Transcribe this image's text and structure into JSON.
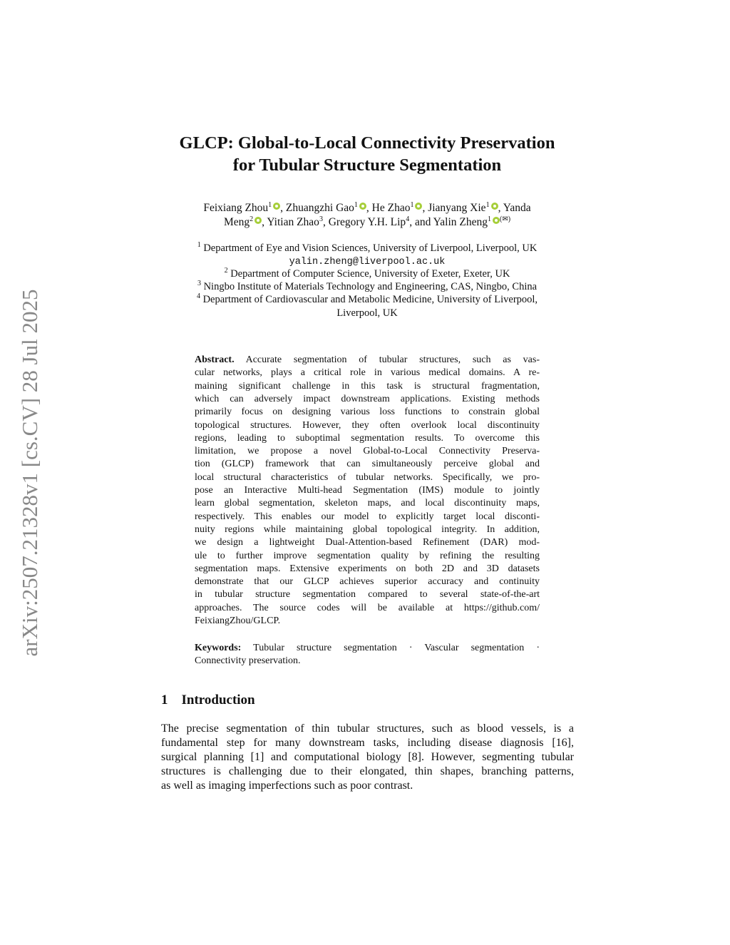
{
  "sidebar_stamp": "arXiv:2507.21328v1  [cs.CV]  28 Jul 2025",
  "title": [
    "GLCP: Global-to-Local Connectivity Preservation",
    "for Tubular Structure Segmentation"
  ],
  "authors": {
    "a1": "Feixiang Zhou",
    "a2": "Zhuangzhi Gao",
    "a3": "He Zhao",
    "a4": "Jianyang Xie",
    "a5": "Yanda",
    "a5b": "Meng",
    "a6": "Yitian Zhao",
    "a7": "Gregory Y.H. Lip",
    "a8": "Yalin Zheng",
    "sep": ", ",
    "and": ", and ",
    "corresponding": "(✉)",
    "orcid_color": "#a6ce39"
  },
  "affiliations": [
    {
      "num": "1",
      "text": "Department of Eye and Vision Sciences, University of Liverpool, Liverpool, UK"
    },
    {
      "email": "yalin.zheng@liverpool.ac.uk"
    },
    {
      "num": "2",
      "text": "Department of Computer Science, University of Exeter, Exeter, UK"
    },
    {
      "num": "3",
      "text": "Ningbo Institute of Materials Technology and Engineering, CAS, Ningbo, China"
    },
    {
      "num": "4",
      "text": "Department of Cardiovascular and Metabolic Medicine, University of Liverpool,",
      "text2": "Liverpool, UK"
    }
  ],
  "abstract": {
    "label": "Abstract.",
    "lines": [
      "Accurate segmentation of tubular structures, such as vas-",
      "cular networks, plays a critical role in various medical domains. A re-",
      "maining significant challenge in this task is structural fragmentation,",
      "which can adversely impact downstream applications. Existing methods",
      "primarily focus on designing various loss functions to constrain global",
      "topological structures. However, they often overlook local discontinuity",
      "regions, leading to suboptimal segmentation results. To overcome this",
      "limitation, we propose a novel Global-to-Local Connectivity Preserva-",
      "tion (GLCP) framework that can simultaneously perceive global and",
      "local structural characteristics of tubular networks. Specifically, we pro-",
      "pose an Interactive Multi-head Segmentation (IMS) module to jointly",
      "learn global segmentation, skeleton maps, and local discontinuity maps,",
      "respectively. This enables our model to explicitly target local disconti-",
      "nuity regions while maintaining global topological integrity. In addition,",
      "we design a lightweight Dual-Attention-based Refinement (DAR) mod-",
      "ule to further improve segmentation quality by refining the resulting",
      "segmentation maps. Extensive experiments on both 2D and 3D datasets",
      "demonstrate that our GLCP achieves superior accuracy and continuity",
      "in tubular structure segmentation compared to several state-of-the-art",
      "approaches. The source codes will be available at https://github.com/",
      "FeixiangZhou/GLCP."
    ]
  },
  "keywords": {
    "label": "Keywords:",
    "line1": "Tubular structure segmentation · Vascular segmentation ·",
    "line2": "Connectivity preservation."
  },
  "section": {
    "number": "1",
    "title": "Introduction"
  },
  "intro_lines": [
    "The precise segmentation of thin tubular structures, such as blood vessels, is a",
    "fundamental step for many downstream tasks, including disease diagnosis [16],",
    "surgical planning [1] and computational biology [8]. However, segmenting tubular",
    "structures is challenging due to their elongated, thin shapes, branching patterns,",
    "as well as imaging imperfections such as poor contrast."
  ]
}
